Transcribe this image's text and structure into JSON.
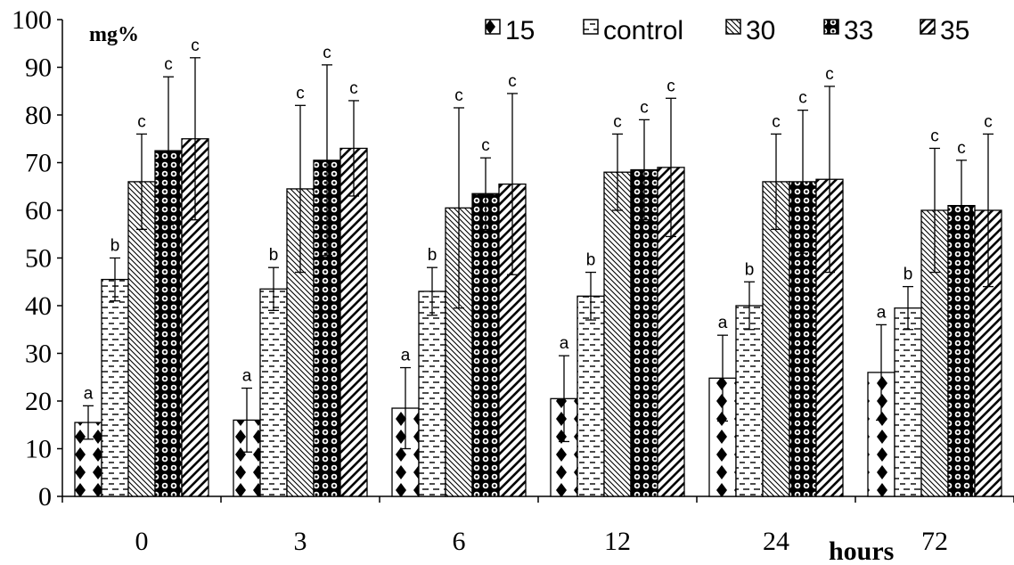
{
  "chart_data": {
    "type": "bar",
    "ylabel": "mg%",
    "xlabel": "hours",
    "ylim": [
      0,
      100
    ],
    "yticks": [
      0,
      10,
      20,
      30,
      40,
      50,
      60,
      70,
      80,
      90,
      100
    ],
    "categories": [
      "0",
      "3",
      "6",
      "12",
      "24",
      "72"
    ],
    "legend_position": "top-right",
    "series": [
      {
        "name": "15",
        "pattern": "diamonds",
        "values": [
          15.5,
          16,
          18.5,
          20.5,
          24.8,
          26
        ],
        "error": [
          3.5,
          6.7,
          8.5,
          9,
          9,
          10
        ],
        "labels": [
          "a",
          "a",
          "a",
          "a",
          "a",
          "a"
        ]
      },
      {
        "name": "control",
        "pattern": "dashes",
        "values": [
          45.5,
          43.5,
          43,
          42,
          40,
          39.5
        ],
        "error": [
          4.5,
          4.5,
          5,
          5,
          5,
          4.5
        ],
        "labels": [
          "b",
          "b",
          "b",
          "b",
          "b",
          "b"
        ]
      },
      {
        "name": "30",
        "pattern": "backslash",
        "values": [
          66,
          64.5,
          60.5,
          68,
          66,
          60
        ],
        "error": [
          10,
          17.5,
          21,
          8,
          10,
          13
        ],
        "labels": [
          "c",
          "c",
          "c",
          "c",
          "c",
          "c"
        ]
      },
      {
        "name": "33",
        "pattern": "dots",
        "values": [
          72.5,
          70.5,
          63.5,
          68.5,
          66,
          61
        ],
        "error": [
          15.5,
          20,
          7.5,
          10.5,
          15,
          9.5
        ],
        "labels": [
          "c",
          "c",
          "c",
          "c",
          "c",
          "c"
        ]
      },
      {
        "name": "35",
        "pattern": "slash",
        "values": [
          75,
          73,
          65.5,
          69,
          66.5,
          60
        ],
        "error": [
          17,
          10,
          19,
          14.5,
          19.5,
          16
        ],
        "labels": [
          "c",
          "c",
          "c",
          "c",
          "c",
          "c"
        ]
      }
    ]
  }
}
